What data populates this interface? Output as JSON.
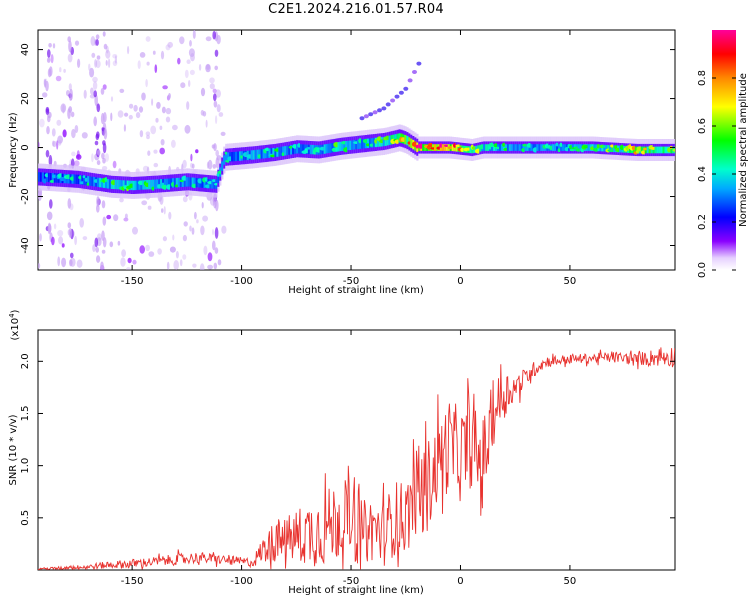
{
  "title": "C2E1.2024.216.01.57.R04",
  "colors": {
    "snr_line": "#e8322e",
    "axis": "#000000"
  },
  "chart_data": [
    {
      "type": "heatmap",
      "title": "C2E1.2024.216.01.57.R04",
      "xlabel": "Height of straight line (km)",
      "ylabel": "Frequency (Hz)",
      "xlim": [
        -193,
        98
      ],
      "ylim": [
        -50,
        48
      ],
      "xticks": [
        -150,
        -100,
        -50,
        0,
        50
      ],
      "yticks": [
        -40,
        -20,
        0,
        20,
        40
      ],
      "colorbar": {
        "label": "Normalized spectral amplitude",
        "range": [
          0.0,
          1.0
        ],
        "ticks": [
          "0.0",
          "0.2",
          "0.4",
          "0.6",
          "0.8"
        ],
        "tick_values": [
          0.0,
          0.2,
          0.4,
          0.6,
          0.8
        ],
        "colormap": "rainbow (white-violet-blue-cyan-green-yellow-red-magenta)"
      },
      "ridge": {
        "x": [
          -193,
          -175,
          -160,
          -150,
          -140,
          -125,
          -112,
          -108,
          -95,
          -85,
          -75,
          -65,
          -55,
          -45,
          -35,
          -28,
          -25,
          -20,
          -15,
          -5,
          0,
          5,
          10,
          20,
          40,
          60,
          80,
          98
        ],
        "y": [
          -12,
          -13,
          -15,
          -15.5,
          -15,
          -14,
          -15,
          -4,
          -3,
          -2,
          -0.5,
          -1,
          0.5,
          1.5,
          2.5,
          4,
          3,
          0,
          0,
          0,
          -0.5,
          -1,
          0,
          0,
          0,
          0,
          -1,
          -1
        ],
        "peak_amplitude": [
          0.4,
          0.45,
          0.55,
          0.55,
          0.5,
          0.5,
          0.45,
          0.45,
          0.5,
          0.5,
          0.45,
          0.5,
          0.55,
          0.5,
          0.6,
          0.75,
          0.8,
          0.95,
          1.0,
          1.0,
          0.85,
          0.7,
          0.6,
          0.5,
          0.5,
          0.55,
          0.75,
          0.8
        ]
      },
      "secondary_branch": {
        "x": [
          -45,
          -35,
          -30,
          -25,
          -18
        ],
        "y": [
          12,
          16,
          20,
          24,
          36
        ]
      }
    },
    {
      "type": "line",
      "xlabel": "Height of straight line (km)",
      "ylabel": "SNR (10 * v/v)",
      "y_multiplier": "(x10",
      "y_multiplier_exp": "4",
      "y_multiplier_close": ")",
      "xlim": [
        -193,
        98
      ],
      "ylim": [
        0,
        2.3
      ],
      "xticks": [
        -150,
        -100,
        -50,
        0,
        50
      ],
      "yticks": [
        0.5,
        1.0,
        1.5,
        2.0
      ],
      "ytick_labels": [
        "0.5",
        "1.0",
        "1.5",
        "2.0"
      ],
      "series": [
        {
          "x": [
            -193,
            -180,
            -170,
            -160,
            -150,
            -140,
            -130,
            -120,
            -110,
            -100,
            -95,
            -90,
            -85,
            -80,
            -75,
            -70,
            -65,
            -60,
            -55,
            -50,
            -45,
            -40,
            -35,
            -30,
            -25,
            -20,
            -15,
            -10,
            -5,
            0,
            5,
            10,
            15,
            20,
            25,
            30,
            35,
            40,
            50,
            60,
            70,
            80,
            90,
            98
          ],
          "y": [
            0.01,
            0.02,
            0.03,
            0.05,
            0.06,
            0.08,
            0.1,
            0.12,
            0.1,
            0.08,
            0.07,
            0.2,
            0.25,
            0.28,
            0.32,
            0.35,
            0.38,
            0.42,
            0.5,
            0.55,
            0.35,
            0.4,
            0.35,
            0.5,
            0.5,
            0.75,
            0.8,
            1.05,
            1.2,
            1.1,
            1.2,
            1.0,
            1.5,
            1.7,
            1.75,
            1.85,
            1.95,
            2.0,
            2.02,
            2.03,
            2.04,
            2.02,
            2.04,
            2.05
          ],
          "spread": [
            0.01,
            0.02,
            0.03,
            0.04,
            0.05,
            0.05,
            0.06,
            0.06,
            0.05,
            0.05,
            0.05,
            0.15,
            0.2,
            0.25,
            0.3,
            0.35,
            0.4,
            0.42,
            0.45,
            0.55,
            0.35,
            0.35,
            0.35,
            0.4,
            0.4,
            0.45,
            0.5,
            0.45,
            0.5,
            0.5,
            0.45,
            0.5,
            0.35,
            0.25,
            0.15,
            0.1,
            0.08,
            0.06,
            0.05,
            0.05,
            0.06,
            0.06,
            0.1,
            0.12
          ]
        }
      ]
    }
  ]
}
